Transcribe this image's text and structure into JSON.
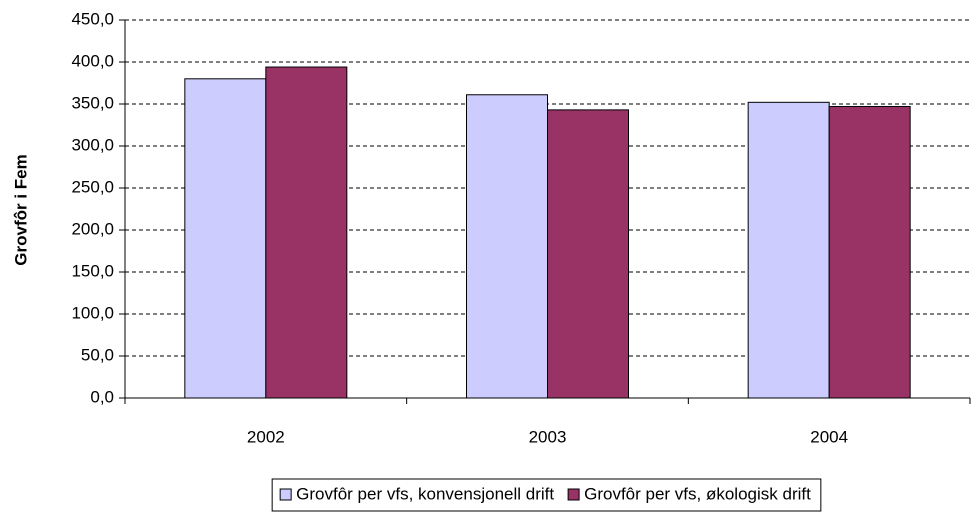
{
  "chart_data": {
    "type": "bar",
    "y_label": "Grovfôr i Fem",
    "categories": [
      "2002",
      "2003",
      "2004"
    ],
    "series": [
      {
        "name": "Grovfôr per vfs, konvensjonell drift",
        "color": "#ccccff",
        "values": [
          380,
          361,
          352
        ]
      },
      {
        "name": "Grovfôr per vfs, økologisk drift",
        "color": "#993366",
        "values": [
          394,
          343,
          347
        ]
      }
    ],
    "ylim": [
      0,
      450
    ],
    "yticks": [
      {
        "value": 0,
        "label": "0,0"
      },
      {
        "value": 50,
        "label": "50,0"
      },
      {
        "value": 100,
        "label": "100,0"
      },
      {
        "value": 150,
        "label": "150,0"
      },
      {
        "value": 200,
        "label": "200,0"
      },
      {
        "value": 250,
        "label": "250,0"
      },
      {
        "value": 300,
        "label": "300,0"
      },
      {
        "value": 350,
        "label": "350,0"
      },
      {
        "value": 400,
        "label": "400,0"
      },
      {
        "value": 450,
        "label": "450,0"
      }
    ],
    "grid": true,
    "legend": "bottom"
  }
}
